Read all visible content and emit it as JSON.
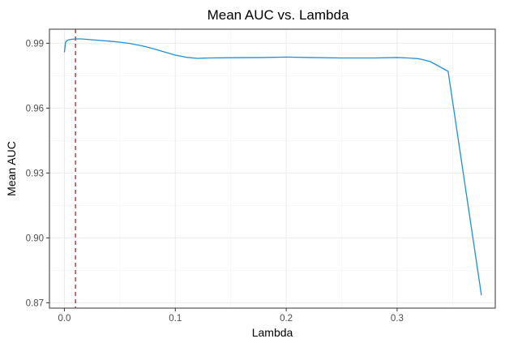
{
  "chart_data": {
    "type": "line",
    "title": "Mean AUC vs. Lambda",
    "xlabel": "Lambda",
    "ylabel": "Mean AUC",
    "xlim": [
      -0.0135,
      0.3885
    ],
    "ylim": [
      0.8675,
      0.9965
    ],
    "xticks": [
      0.0,
      0.1,
      0.2,
      0.3
    ],
    "xtick_labels": [
      "0.0",
      "0.1",
      "0.2",
      "0.3"
    ],
    "yticks": [
      0.87,
      0.9,
      0.93,
      0.96,
      0.99
    ],
    "ytick_labels": [
      "0.87",
      "0.90",
      "0.93",
      "0.96",
      "0.99"
    ],
    "grid": true,
    "line_color": "#1f8fd6",
    "vline": {
      "x": 0.01,
      "color": "#b22222",
      "style": "dashed"
    },
    "series": [
      {
        "x": [
          0.0,
          0.001,
          0.003,
          0.006,
          0.01,
          0.015,
          0.02,
          0.03,
          0.04,
          0.05,
          0.06,
          0.07,
          0.08,
          0.09,
          0.1,
          0.11,
          0.12,
          0.13,
          0.15,
          0.18,
          0.2,
          0.22,
          0.25,
          0.28,
          0.3,
          0.31,
          0.32,
          0.33,
          0.346,
          0.376
        ],
        "y": [
          0.9858,
          0.9905,
          0.9915,
          0.9918,
          0.992,
          0.992,
          0.9918,
          0.9914,
          0.991,
          0.9905,
          0.9898,
          0.9888,
          0.9875,
          0.986,
          0.9845,
          0.9835,
          0.983,
          0.9832,
          0.9833,
          0.9834,
          0.9836,
          0.9834,
          0.9832,
          0.9832,
          0.9834,
          0.9832,
          0.9828,
          0.9815,
          0.977,
          0.8735
        ]
      }
    ]
  }
}
